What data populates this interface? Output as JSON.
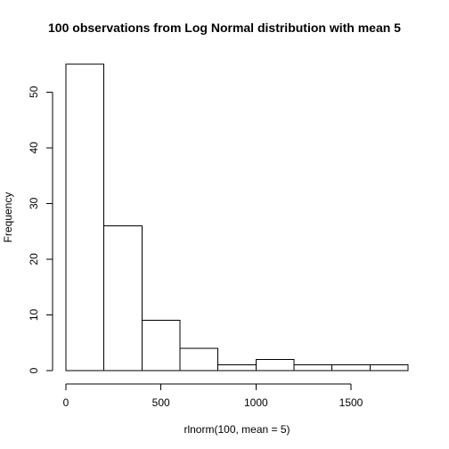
{
  "chart_data": {
    "type": "bar",
    "title": "100 observations from Log Normal distribution with mean 5",
    "xlabel": "rlnorm(100, mean = 5)",
    "ylabel": "Frequency",
    "bins": [
      {
        "x0": 0,
        "x1": 200,
        "count": 55
      },
      {
        "x0": 200,
        "x1": 400,
        "count": 26
      },
      {
        "x0": 400,
        "x1": 600,
        "count": 9
      },
      {
        "x0": 600,
        "x1": 800,
        "count": 4
      },
      {
        "x0": 800,
        "x1": 1000,
        "count": 1
      },
      {
        "x0": 1000,
        "x1": 1200,
        "count": 2
      },
      {
        "x0": 1200,
        "x1": 1400,
        "count": 1
      },
      {
        "x0": 1400,
        "x1": 1600,
        "count": 1
      },
      {
        "x0": 1600,
        "x1": 1800,
        "count": 1
      }
    ],
    "xlim": [
      0,
      1800
    ],
    "ylim": [
      0,
      55
    ],
    "xticks": [
      0,
      500,
      1000,
      1500
    ],
    "yticks": [
      0,
      10,
      20,
      30,
      40,
      50
    ],
    "grid": false,
    "colors": {
      "bar_fill": "#ffffff",
      "bar_stroke": "#000000",
      "axis": "#000000"
    }
  }
}
